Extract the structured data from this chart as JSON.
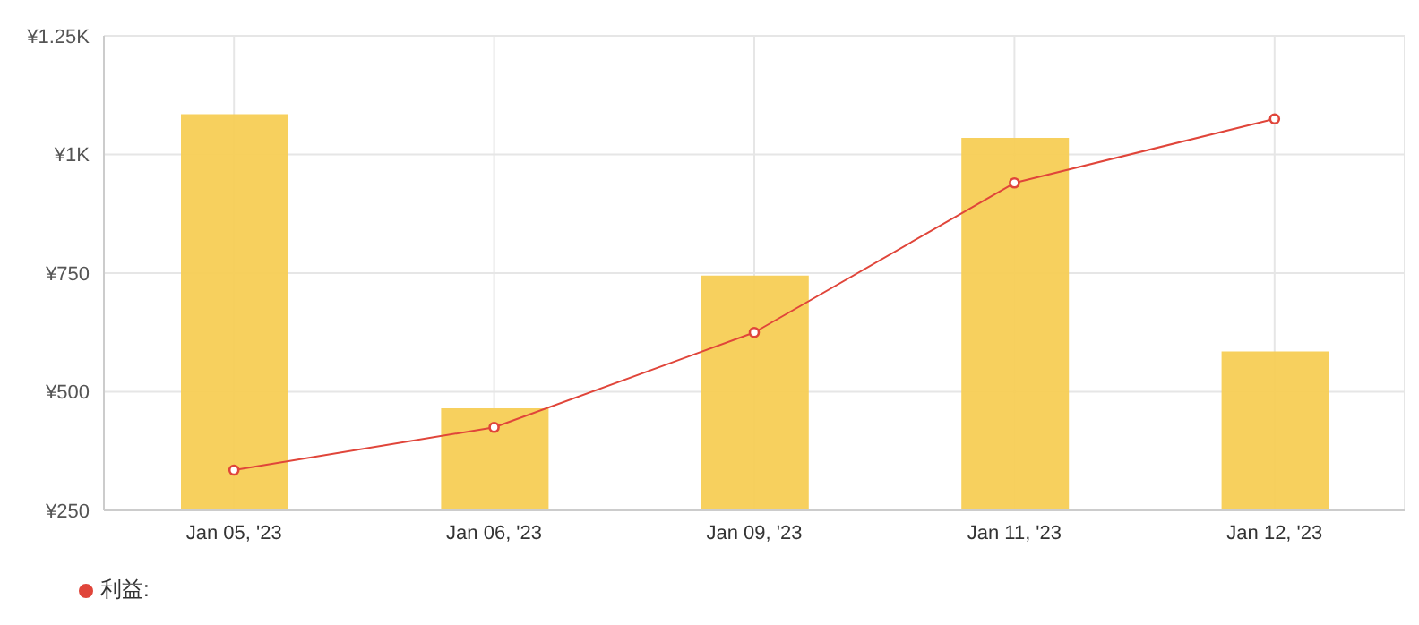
{
  "chart_data": {
    "type": "bar",
    "categories": [
      "Jan 05, '23",
      "Jan 06, '23",
      "Jan 09, '23",
      "Jan 11, '23",
      "Jan 12, '23"
    ],
    "series": [
      {
        "color": "#f7ce55",
        "values": [
          1085,
          465,
          745,
          1035,
          585
        ]
      },
      {
        "type": "line",
        "name": "利益:",
        "color": "#e0453a",
        "values": [
          335,
          425,
          625,
          940,
          1075
        ],
        "marker": "circle"
      }
    ],
    "ylim": [
      250,
      1250
    ],
    "yticks": [
      {
        "value": 250,
        "label": "¥250"
      },
      {
        "value": 500,
        "label": "¥500"
      },
      {
        "value": 750,
        "label": "¥750"
      },
      {
        "value": 1000,
        "label": "¥1K"
      },
      {
        "value": 1250,
        "label": "¥1.25K"
      }
    ],
    "grid": true,
    "legend": "bottom left"
  }
}
